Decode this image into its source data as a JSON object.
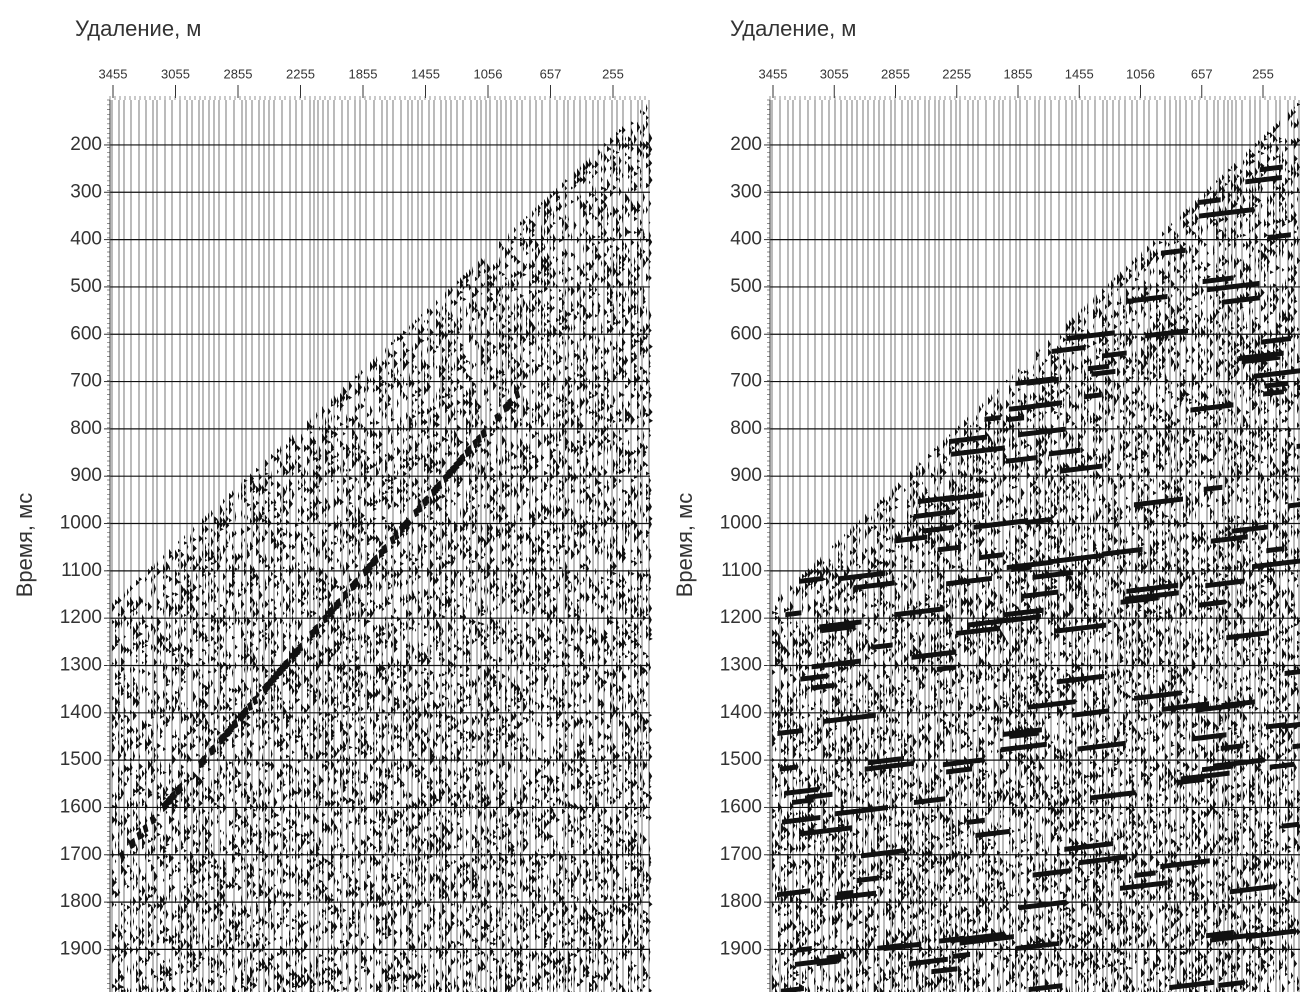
{
  "chart_data": [
    {
      "type": "seismic",
      "x_label": "Удаление, м",
      "y_label": "Время, мс",
      "categories": [
        3455,
        3055,
        2855,
        2255,
        1855,
        1455,
        1056,
        657,
        255
      ],
      "ylim": [
        105,
        1990
      ],
      "yticks": [
        200,
        300,
        400,
        500,
        600,
        700,
        800,
        900,
        1000,
        1100,
        1200,
        1300,
        1400,
        1500,
        1600,
        1700,
        1800,
        1900
      ],
      "grid": true
    },
    {
      "type": "seismic",
      "x_label": "Удаление, м",
      "y_label": "Время, мс",
      "categories": [
        3455,
        3055,
        2855,
        2255,
        1855,
        1455,
        1056,
        657,
        255
      ],
      "ylim": [
        105,
        1990
      ],
      "yticks": [
        200,
        300,
        400,
        500,
        600,
        700,
        800,
        900,
        1000,
        1100,
        1200,
        1300,
        1400,
        1500,
        1600,
        1700,
        1800,
        1900
      ],
      "grid": true
    }
  ]
}
